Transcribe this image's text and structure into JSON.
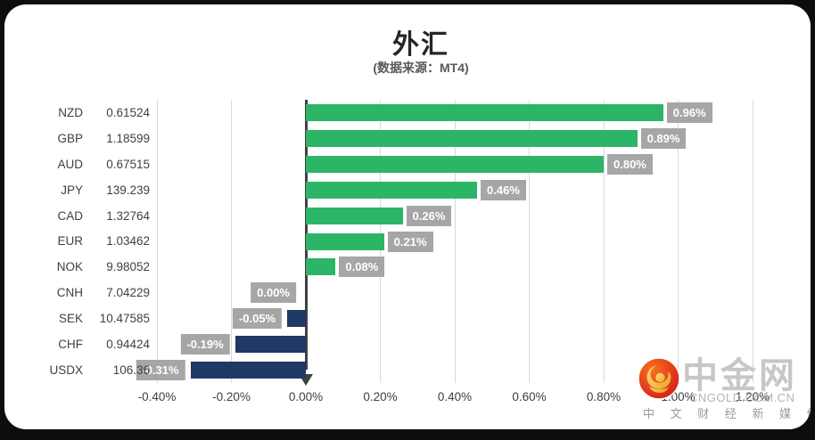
{
  "title": "外汇",
  "subtitle": "(数据来源：MT4)",
  "chart_data": {
    "type": "bar",
    "orientation": "horizontal",
    "categories": [
      "NZD",
      "GBP",
      "AUD",
      "JPY",
      "CAD",
      "EUR",
      "NOK",
      "CNH",
      "SEK",
      "CHF",
      "USDX"
    ],
    "quotes": [
      "0.61524",
      "1.18599",
      "0.67515",
      "139.239",
      "1.32764",
      "1.03462",
      "9.98052",
      "7.04229",
      "10.47585",
      "0.94424",
      "106.36"
    ],
    "values": [
      0.96,
      0.89,
      0.8,
      0.46,
      0.26,
      0.21,
      0.08,
      0.0,
      -0.05,
      -0.19,
      -0.31
    ],
    "value_labels": [
      "0.96%",
      "0.89%",
      "0.80%",
      "0.46%",
      "0.26%",
      "0.21%",
      "0.08%",
      "0.00%",
      "-0.05%",
      "-0.19%",
      "-0.31%"
    ],
    "x_ticks": [
      "-0.40%",
      "-0.20%",
      "0.00%",
      "0.20%",
      "0.40%",
      "0.60%",
      "0.80%",
      "1.00%",
      "1.20%"
    ],
    "x_tick_values": [
      -0.4,
      -0.2,
      0.0,
      0.2,
      0.4,
      0.6,
      0.8,
      1.0,
      1.2
    ],
    "xlim": [
      -0.4,
      1.2
    ],
    "grid": true,
    "positive_color": "#2cb566",
    "negative_color": "#1f3864",
    "label_bg": "#a6a6a6",
    "label_text_color": "#ffffff",
    "grid_color": "#d9d9d9",
    "axis_color": "#404040"
  },
  "watermark": {
    "brand": "中金网",
    "domain": "CNGOLD.COM.CN",
    "tagline": "中 文 财 经 新 媒 体"
  }
}
